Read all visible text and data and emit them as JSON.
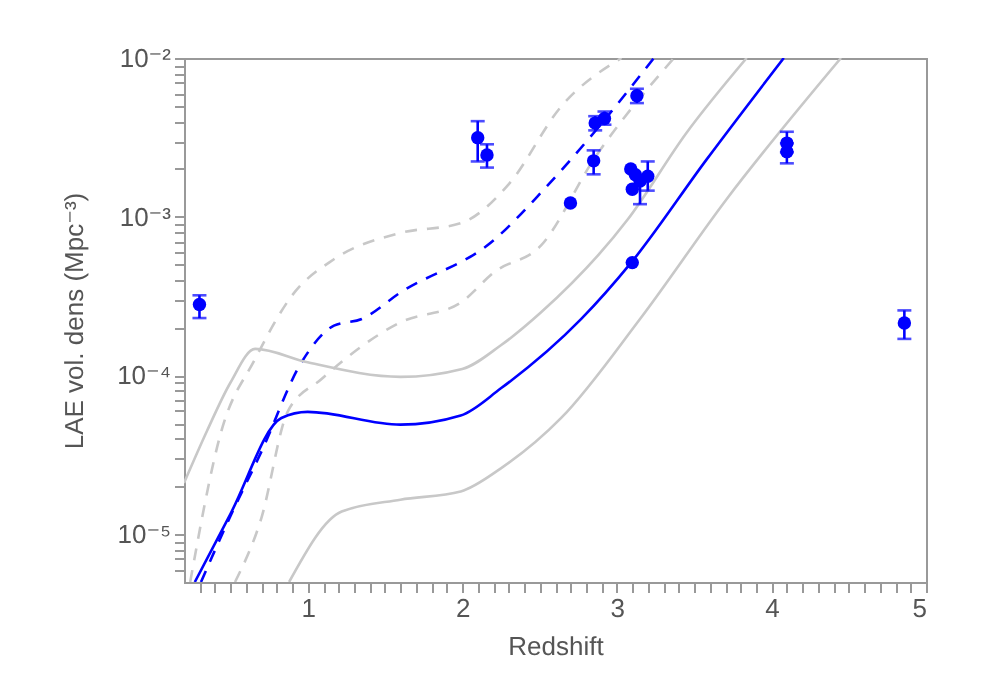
{
  "chart_data": {
    "type": "scatter",
    "xlabel": "Redshift",
    "ylabel": "LAE vol. dens (Mpc⁻³)",
    "log": "y",
    "grid": false,
    "xlim": [
      0.2,
      5
    ],
    "ylim": [
      5e-06,
      0.01
    ],
    "xticks": [
      {
        "value": 0.3,
        "label": null
      },
      {
        "value": 0.4,
        "label": null
      },
      {
        "value": 0.5,
        "label": null
      },
      {
        "value": 0.6,
        "label": null
      },
      {
        "value": 0.7,
        "label": null
      },
      {
        "value": 0.8,
        "label": null
      },
      {
        "value": 0.9,
        "label": null
      },
      1,
      {
        "value": 1.1,
        "label": null
      },
      {
        "value": 1.2,
        "label": null
      },
      {
        "value": 1.3,
        "label": null
      },
      {
        "value": 1.4,
        "label": null
      },
      {
        "value": 1.5,
        "label": null
      },
      {
        "value": 1.6,
        "label": null
      },
      {
        "value": 1.7,
        "label": null
      },
      {
        "value": 1.8,
        "label": null
      },
      {
        "value": 1.9,
        "label": null
      },
      2,
      {
        "value": 2.1,
        "label": null
      },
      {
        "value": 2.2,
        "label": null
      },
      {
        "value": 2.3,
        "label": null
      },
      {
        "value": 2.4,
        "label": null
      },
      {
        "value": 2.5,
        "label": null
      },
      {
        "value": 2.6,
        "label": null
      },
      {
        "value": 2.7,
        "label": null
      },
      {
        "value": 2.8,
        "label": null
      },
      {
        "value": 2.9,
        "label": null
      },
      3,
      {
        "value": 3.1,
        "label": null
      },
      {
        "value": 3.2,
        "label": null
      },
      {
        "value": 3.3,
        "label": null
      },
      {
        "value": 3.4,
        "label": null
      },
      {
        "value": 3.5,
        "label": null
      },
      {
        "value": 3.6,
        "label": null
      },
      {
        "value": 3.7,
        "label": null
      },
      {
        "value": 3.8,
        "label": null
      },
      {
        "value": 3.9,
        "label": null
      },
      4,
      {
        "value": 4.1,
        "label": null
      },
      {
        "value": 4.2,
        "label": null
      },
      {
        "value": 4.3,
        "label": null
      },
      {
        "value": 4.4,
        "label": null
      },
      {
        "value": 4.5,
        "label": null
      },
      {
        "value": 4.6,
        "label": null
      },
      {
        "value": 4.7,
        "label": null
      },
      {
        "value": 4.8,
        "label": null
      },
      {
        "value": 4.9,
        "label": null
      },
      5
    ],
    "yticks": [
      {
        "value": 6e-06,
        "label": null
      },
      {
        "value": 7e-06,
        "label": null
      },
      {
        "value": 8e-06,
        "label": null
      },
      {
        "value": 9e-06,
        "label": null
      },
      {
        "value": 1e-05,
        "label": "10⁻⁵"
      },
      {
        "value": 2e-05,
        "label": null
      },
      {
        "value": 3e-05,
        "label": null
      },
      {
        "value": 4e-05,
        "label": null
      },
      {
        "value": 5e-05,
        "label": null
      },
      {
        "value": 6e-05,
        "label": null
      },
      {
        "value": 7e-05,
        "label": null
      },
      {
        "value": 8e-05,
        "label": null
      },
      {
        "value": 9e-05,
        "label": null
      },
      {
        "value": 0.0001,
        "label": "10⁻⁴"
      },
      {
        "value": 0.0002,
        "label": null
      },
      {
        "value": 0.0003,
        "label": null
      },
      {
        "value": 0.0004,
        "label": null
      },
      {
        "value": 0.0005,
        "label": null
      },
      {
        "value": 0.0006,
        "label": null
      },
      {
        "value": 0.0007,
        "label": null
      },
      {
        "value": 0.0008,
        "label": null
      },
      {
        "value": 0.0009,
        "label": null
      },
      {
        "value": 0.001,
        "label": "10⁻³"
      },
      {
        "value": 0.002,
        "label": null
      },
      {
        "value": 0.003,
        "label": null
      },
      {
        "value": 0.004,
        "label": null
      },
      {
        "value": 0.005,
        "label": null
      },
      {
        "value": 0.006,
        "label": null
      },
      {
        "value": 0.007,
        "label": null
      },
      {
        "value": 0.008,
        "label": null
      },
      {
        "value": 0.009,
        "label": null
      },
      {
        "value": 0.01,
        "label": "10⁻²"
      }
    ],
    "series": [
      {
        "type": "line",
        "color": "#c8c8c8",
        "line_style": "dashed",
        "x": [
          0.24,
          0.44,
          0.66,
          0.9,
          1.17,
          1.6,
          1.99,
          2.3,
          2.64,
          3.03
        ],
        "values": [
          5e-06,
          4.4e-05,
          0.000127,
          0.00032,
          0.00054,
          0.00079,
          0.00091,
          0.0016,
          0.00495,
          0.01
        ]
      },
      {
        "type": "line",
        "color": "#0000ff",
        "line_style": "dashed",
        "x": [
          0.31,
          0.5,
          0.7,
          0.96,
          1.17,
          1.35,
          1.6,
          2.21,
          2.51,
          2.85,
          3.24
        ],
        "values": [
          5e-06,
          1.3e-05,
          3.3e-05,
          0.000121,
          0.000206,
          0.000227,
          0.000333,
          0.00072,
          0.00142,
          0.00337,
          0.01
        ]
      },
      {
        "type": "line",
        "color": "#c8c8c8",
        "line_style": "dashed",
        "x": [
          0.53,
          0.7,
          0.87,
          1.09,
          1.6,
          1.99,
          2.21,
          2.51,
          2.85,
          3.37
        ],
        "values": [
          5e-06,
          1.26e-05,
          5.9e-05,
          9.5e-05,
          0.000216,
          0.000288,
          0.00045,
          0.00066,
          0.00229,
          0.01
        ]
      },
      {
        "type": "line",
        "color": "#c8c8c8",
        "line_style": "solid",
        "x": [
          0.2,
          0.35,
          0.5,
          0.66,
          1.0,
          1.6,
          2.0,
          2.25,
          2.51,
          3.07,
          3.45,
          3.84
        ],
        "values": [
          2.1e-05,
          4.5e-05,
          9e-05,
          0.000147,
          0.000121,
          9.8e-05,
          0.00011,
          0.000155,
          0.00025,
          0.00096,
          0.00337,
          0.01
        ]
      },
      {
        "type": "line",
        "color": "#0000ff",
        "line_style": "solid",
        "x": [
          0.27,
          0.5,
          0.83,
          1.0,
          1.6,
          1.99,
          2.25,
          2.77,
          3.09,
          3.58,
          4.08
        ],
        "values": [
          5e-06,
          1.34e-05,
          5.4e-05,
          5.9e-05,
          4.9e-05,
          5.6e-05,
          8.3e-05,
          0.000227,
          0.00051,
          0.00229,
          0.01
        ]
      },
      {
        "type": "line",
        "color": "#c8c8c8",
        "line_style": "solid",
        "x": [
          0.88,
          1.22,
          1.6,
          1.99,
          2.25,
          2.64,
          3.15,
          3.71,
          4.45
        ],
        "values": [
          5e-06,
          1.39e-05,
          1.65e-05,
          1.86e-05,
          2.6e-05,
          5.4e-05,
          0.000227,
          0.00129,
          0.01
        ]
      },
      {
        "color": "#0000ff",
        "marker": "circle",
        "x": [
          0.3,
          2.1,
          2.16,
          2.7,
          2.85,
          2.86,
          2.92,
          3.13,
          3.09,
          3.12,
          3.1,
          3.15,
          3.2,
          3.1,
          4.1,
          4.1,
          4.86
        ],
        "values": [
          0.00028,
          0.00315,
          0.00245,
          0.00122,
          0.00225,
          0.00389,
          0.00416,
          0.00578,
          0.002,
          0.00184,
          0.00149,
          0.00168,
          0.0018,
          0.000514,
          0.00291,
          0.00257,
          0.000214
        ],
        "errors": [
          [
            0.00023,
            0.00032
          ],
          [
            0.00223,
            0.004
          ],
          [
            0.00204,
            0.00286
          ],
          null,
          [
            0.00185,
            0.00262
          ],
          [
            0.0035,
            0.0043
          ],
          [
            0.0038,
            0.0046
          ],
          [
            0.0052,
            0.0064
          ],
          null,
          null,
          null,
          [
            0.0012,
            0.00172
          ],
          [
            0.00146,
            0.00223
          ],
          null,
          [
            0.00255,
            0.00343
          ],
          [
            0.00217,
            0.0029
          ],
          [
            0.00017,
            0.000257
          ]
        ]
      }
    ]
  }
}
